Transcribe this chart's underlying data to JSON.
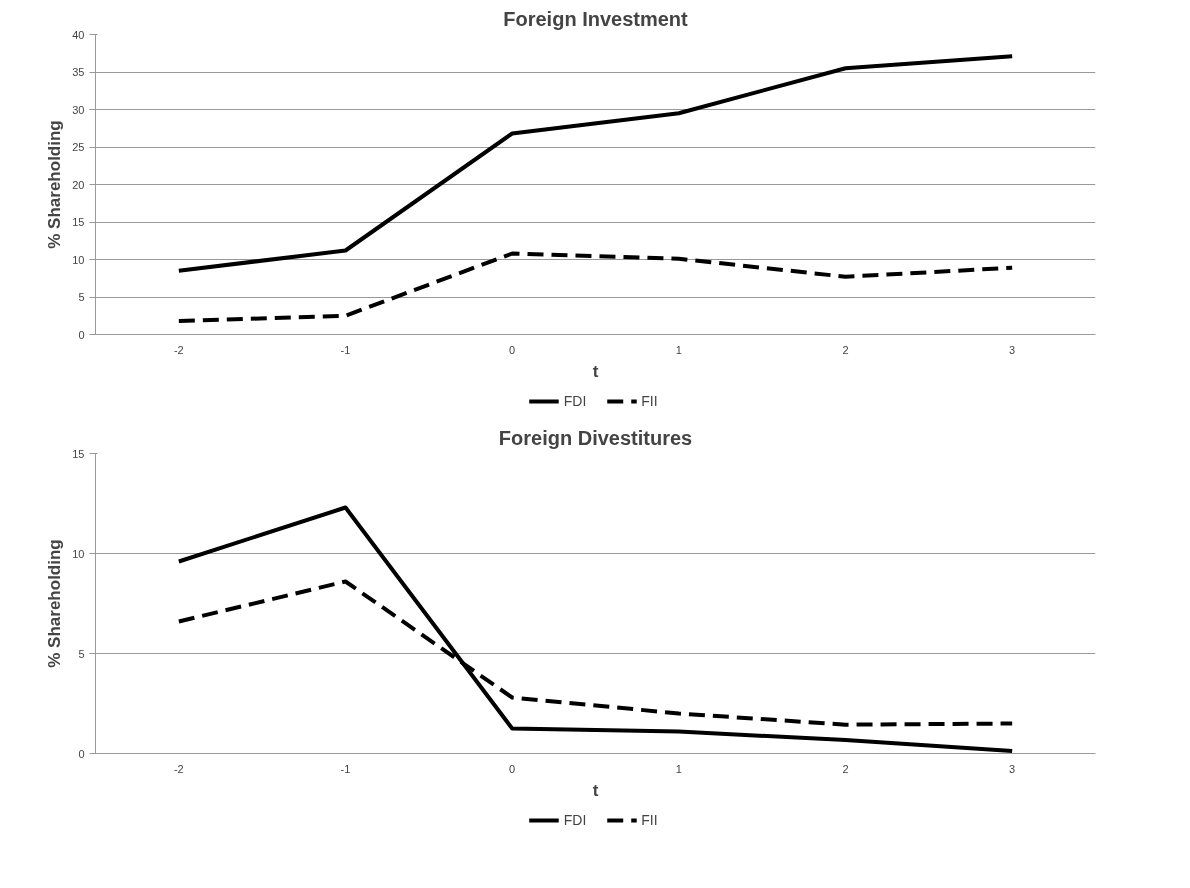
{
  "chart_data": [
    {
      "type": "line",
      "title": "Foreign Investment",
      "xlabel": "t",
      "ylabel": "% Shareholding",
      "categories": [
        "-2",
        "-1",
        "0",
        "1",
        "2",
        "3"
      ],
      "series": [
        {
          "name": "FDI",
          "color": "#000000",
          "line_style": "solid",
          "values": [
            8.5,
            11.2,
            26.8,
            29.5,
            35.5,
            37.1
          ]
        },
        {
          "name": "FII",
          "color": "#000000",
          "line_style": "dashed",
          "values": [
            1.8,
            2.5,
            10.8,
            10.1,
            7.7,
            8.9
          ]
        }
      ],
      "ylim": [
        0,
        40
      ],
      "yticks": [
        0,
        5,
        10,
        15,
        20,
        25,
        30,
        35,
        40
      ],
      "grid": "y",
      "legend": "bottom",
      "marker": "none"
    },
    {
      "type": "line",
      "title": "Foreign Divestitures",
      "xlabel": "t",
      "ylabel": "% Shareholding",
      "categories": [
        "-2",
        "-1",
        "0",
        "1",
        "2",
        "3"
      ],
      "series": [
        {
          "name": "FDI",
          "color": "#000000",
          "line_style": "solid",
          "values": [
            9.6,
            12.3,
            1.25,
            1.1,
            0.67,
            0.13
          ]
        },
        {
          "name": "FII",
          "color": "#000000",
          "line_style": "dashed",
          "values": [
            6.6,
            8.6,
            2.8,
            2.0,
            1.44,
            1.5
          ]
        }
      ],
      "ylim": [
        0,
        15
      ],
      "yticks": [
        0,
        5,
        10,
        15
      ],
      "grid": "y",
      "legend": "bottom",
      "marker": "none"
    }
  ]
}
